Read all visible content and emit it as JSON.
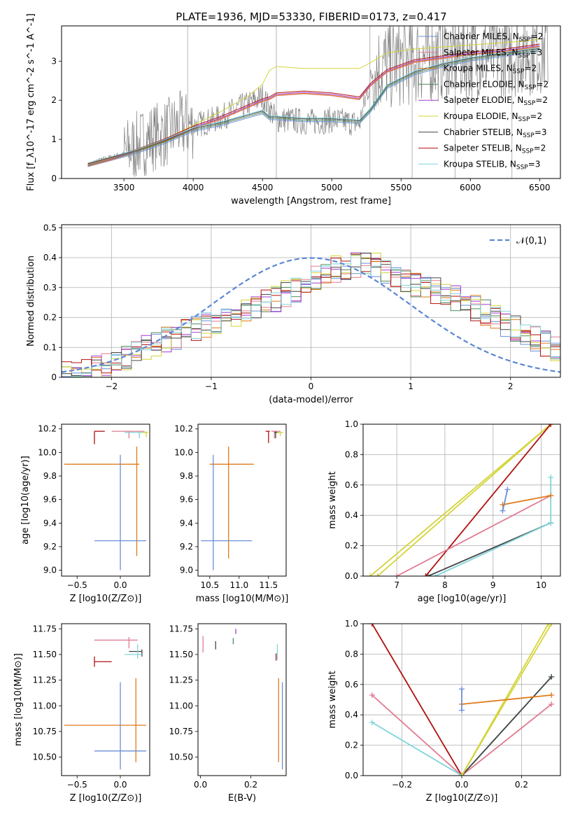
{
  "page_title": "PLATE=1936, MJD=53330, FIBERID=0173, z=0.417",
  "colors": {
    "chabrier_miles": "#6a8fd6",
    "salpeter_miles": "#e07b91",
    "kroupa_miles": "#e07b1a",
    "chabrier_elodie": "#4f8a5a",
    "salpeter_elodie": "#a23bd0",
    "kroupa_elodie": "#d4d43a",
    "chabrier_stelib": "#444444",
    "salpeter_stelib": "#b01010",
    "kroupa_stelib": "#7fd4dc",
    "data": "#808080",
    "normal": "#5b86d6"
  },
  "chart_data": [
    {
      "id": "spectrum",
      "type": "line",
      "title": "PLATE=1936, MJD=53330, FIBERID=0173, z=0.417",
      "xlabel": "wavelength [Angstrom, rest frame]",
      "ylabel": "Flux [f_λ10^-17 erg cm^-2 s^-1 A^-1]",
      "xlim": [
        3050,
        6650
      ],
      "ylim": [
        0,
        3.9
      ],
      "xticks": [
        3500,
        4000,
        4500,
        5000,
        5500,
        6000,
        6500
      ],
      "yticks": [
        0,
        1,
        2,
        3
      ],
      "legend_position": "top-right",
      "data_series": {
        "x": [
          3240,
          3300,
          3400,
          3500,
          3600,
          3700,
          3800,
          3900,
          4000,
          4100,
          4200,
          4300,
          4400,
          4500,
          4600,
          4700,
          4800,
          4900,
          5000,
          5100,
          5200,
          5300,
          5400,
          5500,
          5600,
          5700,
          5800,
          5900,
          6000,
          6100,
          6200,
          6300,
          6400,
          6500
        ],
        "y": [
          0.35,
          0.45,
          0.55,
          0.65,
          0.85,
          1.05,
          1.15,
          1.35,
          1.35,
          1.45,
          1.55,
          1.75,
          1.9,
          2.1,
          1.5,
          1.5,
          1.45,
          1.45,
          1.5,
          1.45,
          1.4,
          2.8,
          2.9,
          3.0,
          3.05,
          3.1,
          3.15,
          3.1,
          3.15,
          3.2,
          3.2,
          3.25,
          3.3,
          3.3
        ]
      },
      "models": [
        {
          "name": "Chabrier MILES, N_SSP=2",
          "key": "chabrier_miles",
          "group": "low"
        },
        {
          "name": "Salpeter MILES, N_SSP=3",
          "key": "salpeter_miles",
          "group": "mid"
        },
        {
          "name": "Kroupa MILES, N_SSP=2",
          "key": "kroupa_miles",
          "group": "mid"
        },
        {
          "name": "Chabrier ELODIE, N_SSP=2",
          "key": "chabrier_elodie",
          "group": "low"
        },
        {
          "name": "Salpeter ELODIE, N_SSP=2",
          "key": "salpeter_elodie",
          "group": "mid"
        },
        {
          "name": "Kroupa ELODIE, N_SSP=2",
          "key": "kroupa_elodie",
          "group": "high"
        },
        {
          "name": "Chabrier STELIB, N_SSP=3",
          "key": "chabrier_stelib",
          "group": "low"
        },
        {
          "name": "Salpeter STELIB, N_SSP=2",
          "key": "salpeter_stelib",
          "group": "mid"
        },
        {
          "name": "Kroupa STELIB, N_SSP=3",
          "key": "kroupa_stelib",
          "group": "low"
        }
      ],
      "model_curves": {
        "x": [
          3240,
          3400,
          3600,
          3800,
          4000,
          4200,
          4400,
          4500,
          4550,
          4600,
          4800,
          5000,
          5200,
          5280,
          5400,
          5600,
          5800,
          6000,
          6200,
          6400,
          6500
        ],
        "low": [
          0.35,
          0.5,
          0.7,
          0.95,
          1.25,
          1.4,
          1.6,
          1.7,
          1.55,
          1.55,
          1.5,
          1.5,
          1.45,
          1.75,
          2.35,
          2.7,
          2.9,
          3.05,
          3.15,
          3.25,
          3.3
        ],
        "mid": [
          0.35,
          0.5,
          0.72,
          0.98,
          1.3,
          1.55,
          1.85,
          2.0,
          2.05,
          2.15,
          2.2,
          2.15,
          2.05,
          2.4,
          2.75,
          3.0,
          3.1,
          3.2,
          3.25,
          3.35,
          3.4
        ],
        "high": [
          0.35,
          0.5,
          0.72,
          1.0,
          1.35,
          1.7,
          2.1,
          2.4,
          2.75,
          2.85,
          2.8,
          2.8,
          2.8,
          2.95,
          3.2,
          3.3,
          3.35,
          3.4,
          3.45,
          3.5,
          3.55
        ]
      }
    },
    {
      "id": "residuals",
      "type": "line",
      "xlabel": "(data-model)/error",
      "ylabel": "Normed distribution",
      "xlim": [
        -2.5,
        2.5
      ],
      "ylim": [
        0,
        0.51
      ],
      "xticks": [
        -2,
        -1,
        0,
        1,
        2
      ],
      "yticks": [
        0.0,
        0.1,
        0.2,
        0.3,
        0.4,
        0.5
      ],
      "legend": "𝒩(0,1)",
      "legend_position": "top-right",
      "grid": true,
      "histogram_mean_shape": {
        "x": [
          -2.5,
          -2.0,
          -1.5,
          -1.0,
          -0.5,
          0.0,
          0.3,
          0.6,
          1.0,
          1.5,
          2.0,
          2.5
        ],
        "y": [
          0.01,
          0.04,
          0.12,
          0.18,
          0.24,
          0.32,
          0.37,
          0.38,
          0.32,
          0.26,
          0.17,
          0.09
        ]
      }
    },
    {
      "id": "age_vs_Z",
      "type": "scatter",
      "xlabel": "Z [log10(Z/Z⊙)]",
      "ylabel": "age  [log10(age/yr)]",
      "xlim": [
        -0.68,
        0.34
      ],
      "ylim": [
        8.95,
        10.24
      ],
      "xticks": [
        -0.5,
        0.0
      ],
      "yticks": [
        9.0,
        9.2,
        9.4,
        9.6,
        9.8,
        10.0,
        10.2
      ],
      "errorbars": [
        {
          "key": "kroupa_miles",
          "x": [
            -0.65,
            0.22
          ],
          "y": [
            9.9,
            9.9
          ],
          "v": [
            0.19,
            9.12,
            10.05
          ]
        },
        {
          "key": "chabrier_miles",
          "x": [
            -0.3,
            0.3
          ],
          "y": [
            9.25,
            9.25
          ],
          "v": [
            0.0,
            9.0,
            9.98
          ]
        },
        {
          "key": "salpeter_stelib",
          "x": [
            -0.3,
            -0.18
          ],
          "y": [
            10.18,
            10.18
          ],
          "v": [
            -0.3,
            10.07,
            10.18
          ]
        },
        {
          "key": "salpeter_miles",
          "x": [
            -0.1,
            0.28
          ],
          "y": [
            10.18,
            10.18
          ],
          "v": [
            0.1,
            10.12,
            10.18
          ]
        },
        {
          "key": "kroupa_stelib",
          "x": [
            0.05,
            0.3
          ],
          "y": [
            10.17,
            10.17
          ],
          "v": [
            0.22,
            10.12,
            10.18
          ]
        },
        {
          "key": "kroupa_elodie",
          "x": [
            0.25,
            0.32
          ],
          "y": [
            10.17,
            10.17
          ],
          "v": [
            0.3,
            10.13,
            10.18
          ]
        }
      ]
    },
    {
      "id": "age_vs_mass",
      "type": "scatter",
      "xlabel": "mass [log10(M/M⊙)]",
      "ylabel": "",
      "xlim": [
        10.3,
        11.8
      ],
      "ylim": [
        8.95,
        10.24
      ],
      "xticks": [
        10.5,
        11.0,
        11.5
      ],
      "yticks": [
        9.0,
        9.2,
        9.4,
        9.6,
        9.8,
        10.0,
        10.2
      ],
      "errorbars": [
        {
          "key": "kroupa_miles",
          "x": [
            10.5,
            11.25
          ],
          "y": [
            9.9,
            9.9
          ],
          "v": [
            10.82,
            9.1,
            10.05
          ]
        },
        {
          "key": "chabrier_miles",
          "x": [
            10.35,
            11.22
          ],
          "y": [
            9.25,
            9.25
          ],
          "v": [
            10.56,
            9.0,
            9.98
          ]
        },
        {
          "key": "salpeter_stelib",
          "x": [
            11.45,
            11.52
          ],
          "y": [
            10.18,
            10.18
          ],
          "v": [
            11.5,
            10.08,
            10.18
          ]
        },
        {
          "key": "salpeter_miles",
          "x": [
            11.55,
            11.7
          ],
          "y": [
            10.18,
            10.18
          ],
          "v": [
            11.6,
            10.12,
            10.18
          ]
        },
        {
          "key": "chabrier_stelib",
          "x": [
            11.6,
            11.68
          ],
          "y": [
            10.17,
            10.17
          ],
          "v": [
            11.62,
            10.12,
            10.18
          ]
        },
        {
          "key": "kroupa_elodie",
          "x": [
            11.65,
            11.75
          ],
          "y": [
            10.17,
            10.17
          ],
          "v": [
            11.7,
            10.14,
            10.18
          ]
        }
      ]
    },
    {
      "id": "weight_vs_age",
      "type": "line",
      "xlabel": "age  [log10(age/yr)]",
      "ylabel": "mass weight",
      "xlim": [
        6.3,
        10.4
      ],
      "ylim": [
        0,
        1.0
      ],
      "xticks": [
        7,
        8,
        9,
        10
      ],
      "yticks": [
        0.0,
        0.2,
        0.4,
        0.6,
        0.8,
        1.0
      ],
      "grid": true,
      "lines": [
        {
          "key": "kroupa_elodie",
          "x": [
            6.45,
            10.2
          ],
          "y": [
            0.0,
            1.0
          ]
        },
        {
          "key": "kroupa_elodie",
          "x": [
            6.6,
            10.2
          ],
          "y": [
            0.0,
            1.0
          ]
        },
        {
          "key": "salpeter_stelib",
          "x": [
            7.6,
            10.2
          ],
          "y": [
            0.0,
            1.0
          ]
        },
        {
          "key": "salpeter_miles",
          "x": [
            7.0,
            10.2
          ],
          "y": [
            0.0,
            0.53
          ]
        },
        {
          "key": "chabrier_stelib",
          "x": [
            7.65,
            10.2
          ],
          "y": [
            0.0,
            0.35
          ]
        },
        {
          "key": "kroupa_stelib",
          "x": [
            7.8,
            10.2
          ],
          "y": [
            0.0,
            0.35
          ]
        },
        {
          "key": "kroupa_stelib",
          "x": [
            10.2,
            10.2
          ],
          "y": [
            0.35,
            0.65
          ]
        },
        {
          "key": "kroupa_miles",
          "x": [
            9.2,
            10.2
          ],
          "y": [
            0.47,
            0.53
          ]
        },
        {
          "key": "chabrier_miles",
          "x": [
            9.2,
            9.3
          ],
          "y": [
            0.43,
            0.57
          ]
        }
      ]
    },
    {
      "id": "mass_vs_Z",
      "type": "scatter",
      "xlabel": "Z [log10(Z/Z⊙)]",
      "ylabel": "mass [log10(M/M⊙)]",
      "xlim": [
        -0.68,
        0.34
      ],
      "ylim": [
        10.32,
        11.8
      ],
      "xticks": [
        -0.5,
        0.0
      ],
      "yticks": [
        10.5,
        10.75,
        11.0,
        11.25,
        11.5,
        11.75
      ],
      "errorbars": [
        {
          "key": "kroupa_miles",
          "x": [
            -0.65,
            0.3
          ],
          "y": [
            10.81,
            10.81
          ],
          "v": [
            0.18,
            10.45,
            11.27
          ]
        },
        {
          "key": "chabrier_miles",
          "x": [
            -0.3,
            0.3
          ],
          "y": [
            10.56,
            10.56
          ],
          "v": [
            0.0,
            10.38,
            11.23
          ]
        },
        {
          "key": "salpeter_stelib",
          "x": [
            -0.3,
            -0.1
          ],
          "y": [
            11.43,
            11.43
          ],
          "v": [
            -0.3,
            11.38,
            11.48
          ]
        },
        {
          "key": "salpeter_miles",
          "x": [
            -0.3,
            0.2
          ],
          "y": [
            11.64,
            11.64
          ],
          "v": [
            0.1,
            11.56,
            11.67
          ]
        },
        {
          "key": "chabrier_stelib",
          "x": [
            0.1,
            0.25
          ],
          "y": [
            11.53,
            11.53
          ],
          "v": [
            0.25,
            11.48,
            11.55
          ]
        },
        {
          "key": "kroupa_stelib",
          "x": [
            0.05,
            0.25
          ],
          "y": [
            11.5,
            11.5
          ],
          "v": [
            0.2,
            11.46,
            11.6
          ]
        }
      ]
    },
    {
      "id": "mass_vs_ebv",
      "type": "scatter",
      "xlabel": "E(B-V)",
      "ylabel": "",
      "xlim": [
        -0.01,
        0.34
      ],
      "ylim": [
        10.32,
        11.8
      ],
      "xticks": [
        0.0,
        0.2
      ],
      "yticks": [
        10.5,
        10.75,
        11.0,
        11.25,
        11.5,
        11.75
      ],
      "errorbars": [
        {
          "key": "kroupa_miles",
          "v": [
            0.31,
            10.45,
            11.27
          ]
        },
        {
          "key": "chabrier_miles",
          "v": [
            0.325,
            10.38,
            11.23
          ]
        },
        {
          "key": "salpeter_miles",
          "v": [
            0.01,
            11.52,
            11.68
          ]
        },
        {
          "key": "chabrier_stelib",
          "v": [
            0.06,
            11.55,
            11.63
          ]
        },
        {
          "key": "chabrier_elodie",
          "v": [
            0.13,
            11.6,
            11.66
          ]
        },
        {
          "key": "salpeter_elodie",
          "v": [
            0.14,
            11.7,
            11.75
          ]
        },
        {
          "key": "salpeter_stelib",
          "v": [
            0.3,
            11.44,
            11.51
          ]
        },
        {
          "key": "kroupa_stelib",
          "v": [
            0.305,
            11.45,
            11.6
          ]
        }
      ]
    },
    {
      "id": "weight_vs_Z",
      "type": "line",
      "xlabel": "Z [log10(Z/Z⊙)]",
      "ylabel": "mass weight",
      "xlim": [
        -0.33,
        0.33
      ],
      "ylim": [
        0,
        1.0
      ],
      "xticks": [
        -0.2,
        0.0,
        0.2
      ],
      "yticks": [
        0.0,
        0.2,
        0.4,
        0.6,
        0.8,
        1.0
      ],
      "grid": true,
      "lines": [
        {
          "key": "salpeter_stelib",
          "x": [
            -0.3,
            0.0
          ],
          "y": [
            1.0,
            0.0
          ]
        },
        {
          "key": "salpeter_miles",
          "x": [
            -0.3,
            0.0,
            0.3
          ],
          "y": [
            0.53,
            0.0,
            0.47
          ]
        },
        {
          "key": "kroupa_stelib",
          "x": [
            -0.3,
            0.0,
            0.3
          ],
          "y": [
            0.35,
            0.0,
            0.65
          ]
        },
        {
          "key": "chabrier_stelib",
          "x": [
            0.0,
            0.3
          ],
          "y": [
            0.0,
            0.65
          ]
        },
        {
          "key": "kroupa_elodie",
          "x": [
            0.0,
            0.3
          ],
          "y": [
            0.0,
            1.0
          ]
        },
        {
          "key": "kroupa_elodie",
          "x": [
            0.0,
            0.29
          ],
          "y": [
            0.0,
            1.0
          ]
        },
        {
          "key": "kroupa_miles",
          "x": [
            0.0,
            0.3
          ],
          "y": [
            0.47,
            0.53
          ]
        },
        {
          "key": "chabrier_miles",
          "x": [
            0.0,
            0.0
          ],
          "y": [
            0.43,
            0.57
          ]
        }
      ]
    }
  ]
}
